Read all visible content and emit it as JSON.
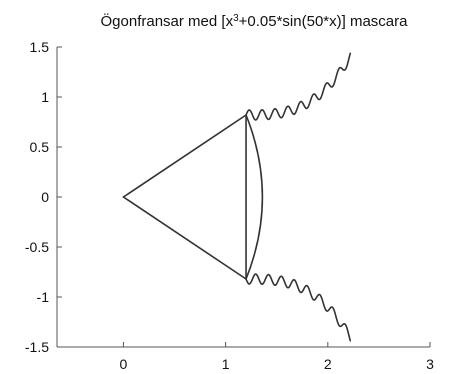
{
  "chart_data": {
    "type": "line",
    "title": {
      "prefix": "Ögonfransar med [x",
      "superscript": "3",
      "suffix": "+0.05*sin(50*x)] mascara"
    },
    "xlabel": "",
    "ylabel": "",
    "xlim": [
      -0.65,
      3
    ],
    "ylim": [
      -1.5,
      1.5
    ],
    "xticks": [
      0,
      1,
      2,
      3
    ],
    "yticks": [
      1.5,
      1,
      0.5,
      0,
      -0.5,
      -1,
      -1.5
    ],
    "xtick_labels": [
      "0",
      "1",
      "2",
      "3"
    ],
    "ytick_labels": [
      "1.5",
      "1",
      "0.5",
      "0",
      "-0.5",
      "-1",
      "-1.5"
    ],
    "grid": false,
    "line_color": "#333333",
    "series": [
      {
        "kind": "line",
        "x": [
          0,
          1.2
        ],
        "y": [
          0,
          0.82
        ]
      },
      {
        "kind": "line",
        "x": [
          0,
          1.2
        ],
        "y": [
          0,
          -0.82
        ]
      },
      {
        "kind": "arc",
        "x": [
          1.2,
          1.52,
          1.2
        ],
        "y": [
          0.82,
          0,
          -0.82
        ]
      },
      {
        "kind": "arc",
        "x": [
          1.2,
          1.2,
          1.2
        ],
        "y": [
          0.82,
          0,
          -0.82
        ]
      },
      {
        "kind": "lash",
        "x_start": 1.2,
        "x_end": 2.22,
        "y_offset": 0.82,
        "amplitude": 0.05,
        "frequency": 50
      },
      {
        "kind": "lash",
        "x_start": 1.2,
        "x_end": 2.22,
        "y_offset": -0.82,
        "amplitude": -0.05,
        "frequency": 50
      }
    ]
  }
}
